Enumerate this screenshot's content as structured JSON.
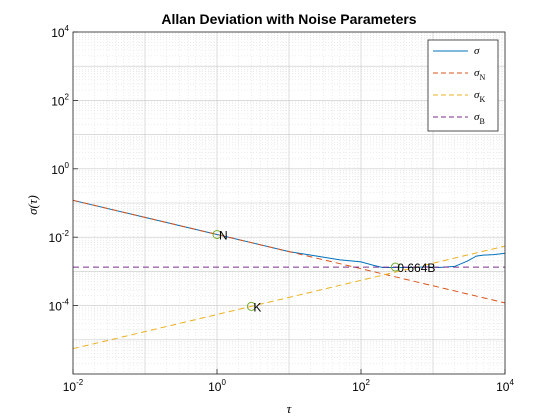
{
  "chart_data": {
    "type": "line",
    "title": "Allan Deviation with Noise Parameters",
    "xlabel": "τ",
    "ylabel": "σ(τ)",
    "xscale": "log",
    "yscale": "log",
    "xlim": [
      0.01,
      10000
    ],
    "ylim": [
      1e-06,
      10000
    ],
    "grid": true,
    "minor_grid": true,
    "legend_position": "top-right",
    "x_ticks": [
      {
        "base": "10",
        "exp": "-2",
        "value": 0.01
      },
      {
        "base": "10",
        "exp": "0",
        "value": 1
      },
      {
        "base": "10",
        "exp": "2",
        "value": 100
      },
      {
        "base": "10",
        "exp": "4",
        "value": 10000
      }
    ],
    "y_ticks": [
      {
        "base": "10",
        "exp": "-4",
        "value": 0.0001
      },
      {
        "base": "10",
        "exp": "-2",
        "value": 0.01
      },
      {
        "base": "10",
        "exp": "0",
        "value": 1
      },
      {
        "base": "10",
        "exp": "2",
        "value": 100
      },
      {
        "base": "10",
        "exp": "4",
        "value": 10000
      }
    ],
    "series": [
      {
        "name": "σ",
        "color": "#0072BD",
        "style": "solid",
        "x": [
          0.01,
          0.1,
          1,
          10,
          50,
          100,
          150,
          200,
          300,
          500,
          800,
          1200,
          2000,
          3000,
          4000,
          5000,
          7000,
          10000
        ],
        "y": [
          0.12,
          0.038,
          0.012,
          0.0038,
          0.0022,
          0.0019,
          0.0015,
          0.0013,
          0.0013,
          0.0013,
          0.00135,
          0.0013,
          0.0014,
          0.002,
          0.0028,
          0.003,
          0.0031,
          0.0034
        ]
      },
      {
        "name": "σN",
        "label_main": "σ",
        "label_sub": "N",
        "color": "#D95319",
        "style": "dashed",
        "x": [
          0.01,
          10000
        ],
        "y": [
          0.12,
          0.00012
        ]
      },
      {
        "name": "σK",
        "label_main": "σ",
        "label_sub": "K",
        "color": "#EDB120",
        "style": "dashed",
        "x": [
          0.01,
          10000
        ],
        "y": [
          5.5e-06,
          0.0055
        ]
      },
      {
        "name": "σB",
        "label_main": "σ",
        "label_sub": "B",
        "color": "#7E2F8E",
        "style": "dashed",
        "x": [
          0.01,
          10000
        ],
        "y": [
          0.00134,
          0.00134
        ]
      }
    ],
    "annotations": [
      {
        "text": "N",
        "x": 1,
        "y": 0.012,
        "marker_color": "#77AC30"
      },
      {
        "text": "K",
        "x": 3,
        "y": 9.5e-05,
        "marker_color": "#77AC30"
      },
      {
        "text": "0.664B",
        "x": 300,
        "y": 0.00134,
        "marker_color": "#77AC30"
      }
    ]
  }
}
